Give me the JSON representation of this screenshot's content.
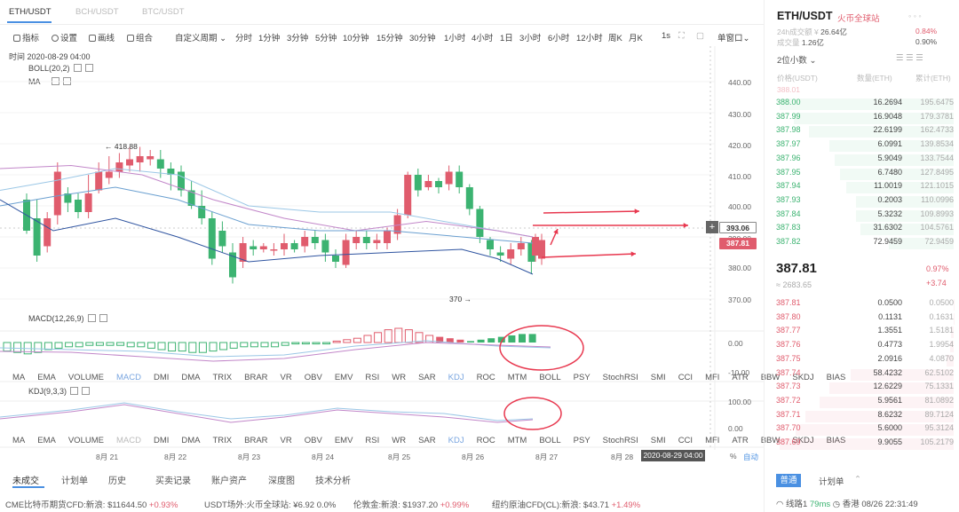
{
  "tabs": [
    "ETH/USDT",
    "BCH/USDT",
    "BTC/USDT"
  ],
  "toolbar": {
    "indicator": "指标",
    "settings": "设置",
    "draw_line": "画线",
    "combine": "组合",
    "custom_period": "自定义周期",
    "periods": [
      "分时",
      "1分钟",
      "3分钟",
      "5分钟",
      "10分钟",
      "15分钟",
      "30分钟",
      "1小时",
      "4小时",
      "1日",
      "3小时",
      "6小时",
      "12小时",
      "周K",
      "月K"
    ],
    "interval": "1s",
    "window_mode": "单窗口"
  },
  "chart": {
    "time_label": "时间 2020-08-29 04:00",
    "boll_label": "BOLL(20,2)",
    "ma_label": "MA",
    "macd_label": "MACD(12,26,9)",
    "kdj_label": "KDJ(9,3,3)",
    "high_marker": "← 418.88",
    "low_marker": "370 →",
    "price_axis": [
      "440.00",
      "430.00",
      "420.00",
      "410.00",
      "400.00",
      "390.00",
      "380.00",
      "370.00"
    ],
    "macd_axis": [
      "0.00",
      "-10.00"
    ],
    "kdj_axis": [
      "100.00",
      "0.00"
    ],
    "tag_upper": "393.06",
    "tag_current": "387.81",
    "date_axis": [
      "8月 21",
      "8月 22",
      "8月 23",
      "8月 24",
      "8月 25",
      "8月 26",
      "8月 27",
      "8月 28"
    ],
    "crosshair_time": "2020-08-29 04:00",
    "pct_label": "%",
    "auto_label": "自动",
    "colors": {
      "up": "#e05c6d",
      "down": "#3cb371",
      "arrow": "#e8384f",
      "accent": "#4a90e2"
    },
    "indicators": [
      "MA",
      "EMA",
      "VOLUME",
      "MACD",
      "DMI",
      "DMA",
      "TRIX",
      "BRAR",
      "VR",
      "OBV",
      "EMV",
      "RSI",
      "WR",
      "SAR",
      "KDJ",
      "ROC",
      "MTM",
      "BOLL",
      "PSY",
      "StochRSI",
      "SMI",
      "CCI",
      "MFI",
      "ATR",
      "BBW",
      "SKDJ",
      "BIAS"
    ]
  },
  "bottom_tabs": [
    "未成交",
    "计划单",
    "历史",
    "买卖记录",
    "账户资产",
    "深度图",
    "技术分析"
  ],
  "ticker": [
    {
      "label": "CME比特币期货CFD:新浪:",
      "value": "$11644.50",
      "change": "+0.93%",
      "dir": "up"
    },
    {
      "label": "USDT场外:火币全球站:",
      "value": "¥6.92",
      "change": "0.0%",
      "dir": "none"
    },
    {
      "label": "伦敦金:新浪:",
      "value": "$1937.20",
      "change": "+0.99%",
      "dir": "up"
    },
    {
      "label": "纽约原油CFD(CL):新浪:",
      "value": "$43.71",
      "change": "+1.49%",
      "dir": "up"
    }
  ],
  "right": {
    "pair": "ETH/USDT",
    "exchange": "火币全球站",
    "stat1": "26.64亿",
    "stat2": "1.26亿",
    "change_pct": "0.84%",
    "change_pct2": "0.90%",
    "precision": "2位小数",
    "header": [
      "价格(USDT)",
      "数量(ETH)",
      "累计(ETH)"
    ],
    "asks": [
      {
        "p": "388.00",
        "q": "16.2694",
        "c": "195.6475"
      },
      {
        "p": "387.99",
        "q": "16.9048",
        "c": "179.3781"
      },
      {
        "p": "387.98",
        "q": "22.6199",
        "c": "162.4733"
      },
      {
        "p": "387.97",
        "q": "6.0991",
        "c": "139.8534"
      },
      {
        "p": "387.96",
        "q": "5.9049",
        "c": "133.7544"
      },
      {
        "p": "387.95",
        "q": "6.7480",
        "c": "127.8495"
      },
      {
        "p": "387.94",
        "q": "11.0019",
        "c": "121.1015"
      },
      {
        "p": "387.93",
        "q": "0.2003",
        "c": "110.0996"
      },
      {
        "p": "387.84",
        "q": "5.3232",
        "c": "109.8993"
      },
      {
        "p": "387.83",
        "q": "31.6302",
        "c": "104.5761"
      },
      {
        "p": "387.82",
        "q": "72.9459",
        "c": "72.9459"
      }
    ],
    "last_price": "387.81",
    "last_cny": "≈ 2683.65",
    "last_change_pct": "0.97%",
    "last_change": "+3.74",
    "bids": [
      {
        "p": "387.81",
        "q": "0.0500",
        "c": "0.0500"
      },
      {
        "p": "387.80",
        "q": "0.1131",
        "c": "0.1631"
      },
      {
        "p": "387.77",
        "q": "1.3551",
        "c": "1.5181"
      },
      {
        "p": "387.76",
        "q": "0.4773",
        "c": "1.9954"
      },
      {
        "p": "387.75",
        "q": "2.0916",
        "c": "4.0870"
      },
      {
        "p": "387.74",
        "q": "58.4232",
        "c": "62.5102"
      },
      {
        "p": "387.73",
        "q": "12.6229",
        "c": "75.1331"
      },
      {
        "p": "387.72",
        "q": "5.9561",
        "c": "81.0892"
      },
      {
        "p": "387.71",
        "q": "8.6232",
        "c": "89.7124"
      },
      {
        "p": "387.70",
        "q": "5.6000",
        "c": "95.3124"
      },
      {
        "p": "387.69",
        "q": "9.9055",
        "c": "105.2179"
      }
    ],
    "bottom_tab1": "普通",
    "bottom_tab2": "计划单",
    "status_line": "线路1",
    "latency": "79ms",
    "location_time": "香港 08/26 22:31:49"
  }
}
